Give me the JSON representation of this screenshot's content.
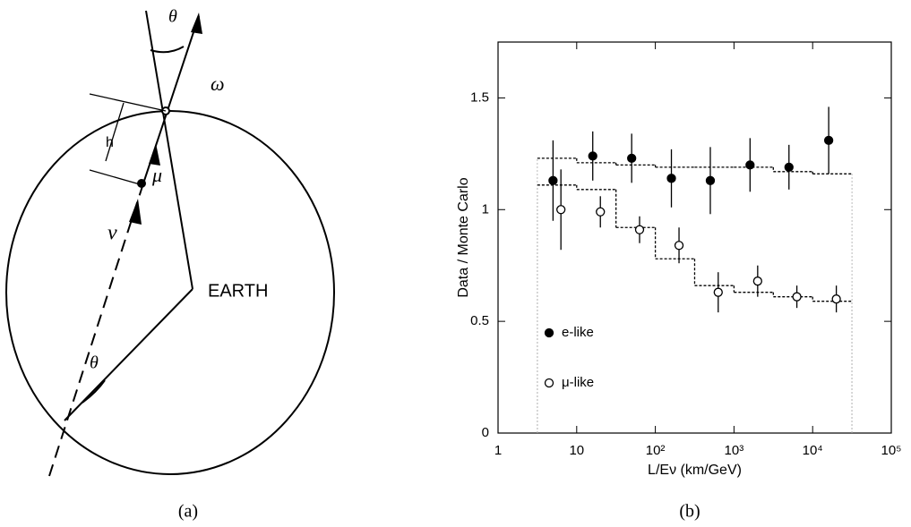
{
  "diagram": {
    "labels": [
      "θ",
      "ω",
      "h",
      "μ",
      "ν",
      "EARTH",
      "θ"
    ]
  },
  "captions": [
    "(a)",
    "(b)"
  ],
  "chart_data": {
    "type": "scatter",
    "log_x": true,
    "xlabel": "L/Eν (km/GeV)",
    "ylabel": "Data / Monte Carlo",
    "xlim": [
      1,
      100000
    ],
    "ylim": [
      0,
      1.75
    ],
    "xticks": [
      1,
      10,
      {
        "value": 100,
        "label": "10²"
      },
      {
        "value": 1000,
        "label": "10³"
      },
      {
        "value": 10000,
        "label": "10⁴"
      },
      {
        "value": 100000,
        "label": "10⁵"
      }
    ],
    "yticks": [
      0,
      0.5,
      1,
      1.5
    ],
    "legend": "lower left",
    "series": [
      {
        "name": "e-like",
        "color": "#000000",
        "marker": "filled",
        "x": [
          5,
          16,
          50,
          160,
          500,
          1600,
          5000,
          16000
        ],
        "values": [
          1.13,
          1.24,
          1.23,
          1.14,
          1.13,
          1.2,
          1.19,
          1.31
        ],
        "errors": [
          0.18,
          0.11,
          0.11,
          0.13,
          0.15,
          0.12,
          0.1,
          0.15
        ]
      },
      {
        "name": "μ-like",
        "color": "#000000",
        "marker": "open",
        "x": [
          6.3,
          20,
          63,
          200,
          630,
          2000,
          6300,
          20000
        ],
        "values": [
          1.0,
          0.99,
          0.91,
          0.84,
          0.63,
          0.68,
          0.61,
          0.6
        ],
        "errors": [
          0.18,
          0.07,
          0.06,
          0.08,
          0.09,
          0.07,
          0.05,
          0.06
        ]
      }
    ],
    "expectation": [
      {
        "bins": [
          3.16,
          10,
          31.6,
          100,
          316,
          1000,
          3162,
          10000,
          31623
        ],
        "values": [
          1.23,
          1.21,
          1.2,
          1.19,
          1.19,
          1.19,
          1.17,
          1.16
        ]
      },
      {
        "bins": [
          3.16,
          10,
          31.6,
          100,
          316,
          1000,
          3162,
          10000,
          31623
        ],
        "values": [
          1.11,
          1.09,
          0.92,
          0.78,
          0.66,
          0.63,
          0.61,
          0.59
        ]
      }
    ]
  }
}
